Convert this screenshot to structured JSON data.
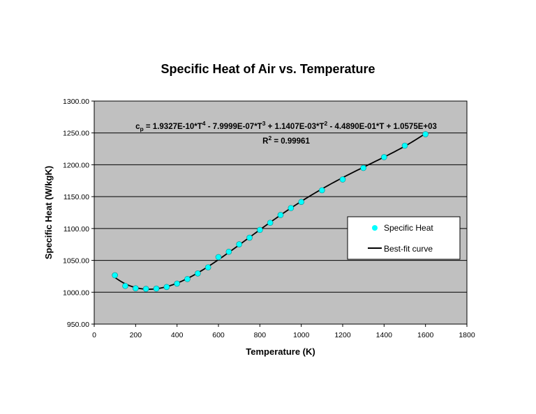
{
  "chart_data": {
    "type": "scatter",
    "title": "Specific Heat of Air vs. Temperature",
    "xlabel": "Temperature (K)",
    "ylabel": "Specific Heat (W/kgK)",
    "xlim": [
      0,
      1800
    ],
    "ylim": [
      950,
      1300
    ],
    "x_ticks": [
      "0",
      "200",
      "400",
      "600",
      "800",
      "1000",
      "1200",
      "1400",
      "1600",
      "1800"
    ],
    "y_ticks": [
      "950.00",
      "1000.00",
      "1050.00",
      "1100.00",
      "1150.00",
      "1200.00",
      "1250.00",
      "1300.00"
    ],
    "grid": "horizontal",
    "legend_position": "right",
    "plot_background": "#c0c0c0",
    "series": [
      {
        "name": "Specific Heat",
        "kind": "markers",
        "color": "#00ffff",
        "x": [
          100,
          150,
          200,
          250,
          300,
          350,
          400,
          450,
          500,
          550,
          600,
          650,
          700,
          750,
          800,
          850,
          900,
          950,
          1000,
          1100,
          1200,
          1300,
          1400,
          1500,
          1600
        ],
        "y": [
          1026.6,
          1009.9,
          1006.1,
          1005.3,
          1005.7,
          1008.2,
          1013.5,
          1020.7,
          1029.5,
          1039.0,
          1055.1,
          1063.5,
          1075.2,
          1085.6,
          1097.8,
          1109.0,
          1121.2,
          1132.1,
          1141.7,
          1160.0,
          1177.0,
          1195.0,
          1212.0,
          1230.0,
          1248.0
        ]
      },
      {
        "name": "Best-fit curve",
        "kind": "line",
        "color": "#000000",
        "equation_coefficients": [
          1.9327e-10,
          -7.9999e-07,
          0.0011407,
          -0.4489,
          1057.5
        ],
        "x_range": [
          100,
          1600
        ]
      }
    ],
    "annotations": {
      "equation_prefix": "c",
      "equation_prefix_sub": "p",
      "equation_parts": [
        {
          "t": " = 1.9327E-10*T",
          "sup": "4"
        },
        {
          "t": " - 7.9999E-07*T",
          "sup": "3"
        },
        {
          "t": " + 1.1407E-03*T",
          "sup": "2"
        },
        {
          "t": " - 4.4890E-01*T + 1.0575E+03",
          "sup": ""
        }
      ],
      "r2_prefix": "R",
      "r2_sup": "2",
      "r2_value": " = 0.99961"
    }
  }
}
